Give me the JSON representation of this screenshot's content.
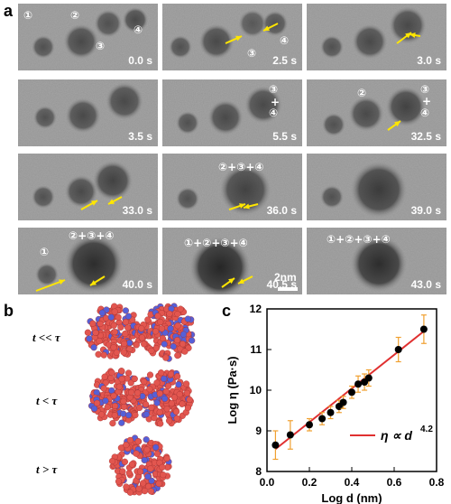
{
  "panel_a": {
    "letter": "a",
    "scale_label": "2nm",
    "tiles": [
      {
        "time": "0.0 s",
        "labels": [
          "①",
          "②",
          "③",
          "④"
        ]
      },
      {
        "time": "2.5 s",
        "labels": [
          "③",
          "④"
        ]
      },
      {
        "time": "3.0 s",
        "labels": []
      },
      {
        "time": "3.5 s",
        "labels": []
      },
      {
        "time": "5.5 s",
        "labels": [
          "③",
          "+",
          "④"
        ]
      },
      {
        "time": "32.5 s",
        "labels": [
          "②",
          "③",
          "+",
          "④"
        ]
      },
      {
        "time": "33.0 s",
        "labels": []
      },
      {
        "time": "36.0 s",
        "labels": [
          "②+③+④"
        ]
      },
      {
        "time": "39.0 s",
        "labels": []
      },
      {
        "time": "40.0 s",
        "labels": [
          "①",
          "②+③+④"
        ]
      },
      {
        "time": "40.5 s",
        "labels": [
          "①+②+③+④"
        ]
      },
      {
        "time": "43.0 s",
        "labels": [
          "①+②+③+④"
        ]
      }
    ]
  },
  "panel_b": {
    "letter": "b",
    "rows": [
      {
        "label": "t << τ"
      },
      {
        "label": "t < τ"
      },
      {
        "label": "t > τ"
      }
    ]
  },
  "panel_c": {
    "letter": "c",
    "legend": "η ∝ d",
    "legend_exp": "4.2",
    "colors": {
      "fit": "#e03030",
      "points": "#000000",
      "errorbars": "#f0a030"
    }
  },
  "chart_data": {
    "type": "scatter",
    "xlabel": "Log d (nm)",
    "ylabel": "Log η (Pa·s)",
    "xlim": [
      0.0,
      0.8
    ],
    "ylim": [
      8,
      12
    ],
    "xticks": [
      0.0,
      0.2,
      0.4,
      0.6,
      0.8
    ],
    "yticks": [
      8,
      9,
      10,
      11,
      12
    ],
    "series": [
      {
        "x": [
          0.04,
          0.11,
          0.2,
          0.26,
          0.3,
          0.34,
          0.36,
          0.4,
          0.43,
          0.46,
          0.48,
          0.62,
          0.74
        ],
        "y": [
          8.65,
          8.9,
          9.15,
          9.3,
          9.45,
          9.6,
          9.7,
          9.95,
          10.15,
          10.2,
          10.3,
          11.0,
          11.5
        ],
        "err": [
          0.35,
          0.35,
          0.15,
          0.15,
          0.15,
          0.15,
          0.15,
          0.15,
          0.2,
          0.2,
          0.2,
          0.3,
          0.35
        ]
      }
    ],
    "fit": {
      "x": [
        0.04,
        0.74
      ],
      "y": [
        8.55,
        11.45
      ]
    }
  }
}
